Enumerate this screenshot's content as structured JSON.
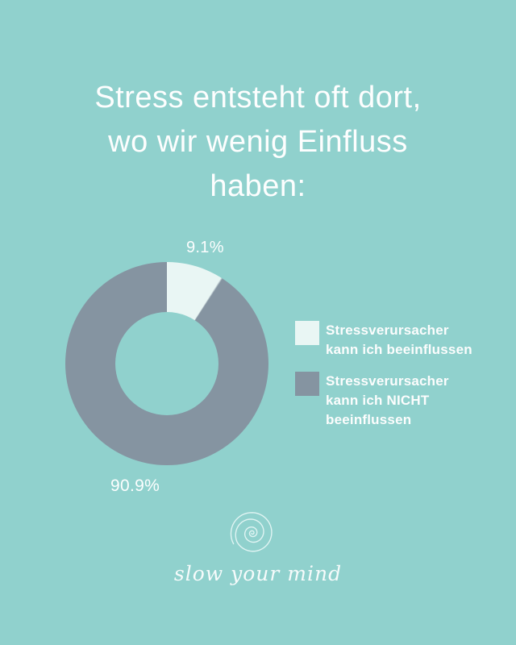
{
  "theme": {
    "background": "#90d1cd",
    "text_color": "#fdfefe"
  },
  "title": {
    "lines": [
      "Stress entsteht oft dort,",
      "wo wir wenig Einfluss",
      "haben:"
    ]
  },
  "chart_data": {
    "type": "pie",
    "donut": true,
    "title": "Stress entsteht oft dort, wo wir wenig Einfluss haben:",
    "categories": [
      "Stressverursacher kann ich beeinflussen",
      "Stressverursacher kann ich NICHT beeinflussen"
    ],
    "values": [
      9.1,
      90.9
    ],
    "value_labels": [
      "9.1%",
      "90.9%"
    ],
    "colors": [
      "#e9f6f4",
      "#8594a1"
    ],
    "start_angle_deg": 0,
    "direction": "clockwise",
    "legend_position": "right",
    "hole_ratio": 0.51
  },
  "legend": {
    "items": [
      {
        "label": "Stressverursacher kann ich beeinflussen",
        "color": "#e9f6f4"
      },
      {
        "label": "Stressverursacher kann ich NICHT beeinflussen",
        "color": "#8594a1"
      }
    ]
  },
  "footer": {
    "logo": "snail-shell-icon",
    "brand": "slow your mind"
  }
}
